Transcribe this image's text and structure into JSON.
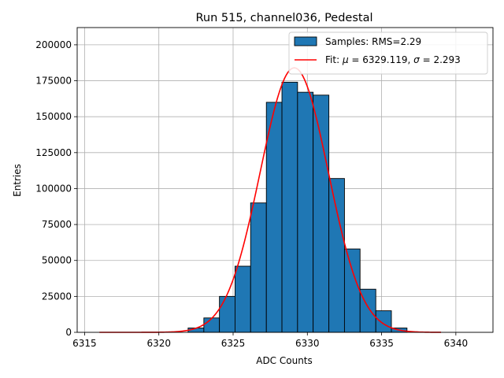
{
  "chart_data": {
    "type": "bar",
    "title": "Run 515, channel036, Pedestal",
    "xlabel": "ADC Counts",
    "ylabel": "Entries",
    "xlim": [
      6314.5,
      6342.5
    ],
    "ylim": [
      0,
      212000
    ],
    "grid": true,
    "legend_position": "top-right",
    "x_ticks": [
      6315,
      6320,
      6325,
      6330,
      6335,
      6340
    ],
    "x_tick_labels": [
      "6315",
      "6320",
      "6325",
      "6330",
      "6335",
      "6340"
    ],
    "y_ticks": [
      0,
      25000,
      50000,
      75000,
      100000,
      125000,
      150000,
      175000,
      200000
    ],
    "y_tick_labels": [
      "0",
      "25000",
      "50000",
      "75000",
      "100000",
      "125000",
      "150000",
      "175000",
      "200000"
    ],
    "histogram": {
      "name": "Samples: RMS=2.29",
      "color": "#1f77b4",
      "edge_color": "#000000",
      "bin_edges": [
        6321.97,
        6323.03,
        6324.08,
        6325.13,
        6326.18,
        6327.24,
        6328.29,
        6329.34,
        6330.39,
        6331.45,
        6332.5,
        6333.55,
        6334.61,
        6335.66,
        6336.71
      ],
      "values": [
        3000,
        10000,
        25000,
        46000,
        90000,
        160000,
        174000,
        167000,
        165000,
        107000,
        58000,
        30000,
        15000,
        3000
      ]
    },
    "fit": {
      "name_prefix": "Fit: ",
      "mu_symbol": "μ",
      "mu_text": " = 6329.119, ",
      "sigma_symbol": "σ",
      "sigma_text": " = 2.293",
      "mu": 6329.119,
      "sigma": 2.293,
      "amplitude": 184000,
      "x_range": [
        6316,
        6339
      ],
      "color": "#ff0000"
    }
  }
}
